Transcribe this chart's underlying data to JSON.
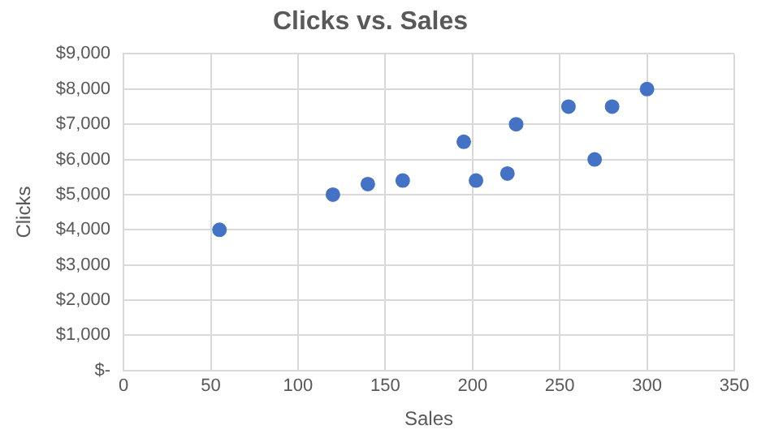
{
  "chart_data": {
    "type": "scatter",
    "title": "Clicks vs. Sales",
    "xlabel": "Sales",
    "ylabel": "Clicks",
    "x": [
      55,
      120,
      140,
      160,
      195,
      202,
      220,
      225,
      255,
      270,
      280,
      300
    ],
    "values": [
      4000,
      5000,
      5300,
      5400,
      6500,
      5400,
      5600,
      7000,
      7500,
      6000,
      7500,
      8000
    ],
    "color": "#4472c4",
    "marker": "circle",
    "grid": true,
    "legend": false,
    "xlim": [
      0,
      350
    ],
    "xticks": [
      0,
      50,
      100,
      150,
      200,
      250,
      300,
      350
    ],
    "ylim": [
      0,
      9000
    ],
    "yticks": [
      {
        "value": 0,
        "label": "$-"
      },
      {
        "value": 1000,
        "label": "$1,000"
      },
      {
        "value": 2000,
        "label": "$2,000"
      },
      {
        "value": 3000,
        "label": "$3,000"
      },
      {
        "value": 4000,
        "label": "$4,000"
      },
      {
        "value": 5000,
        "label": "$5,000"
      },
      {
        "value": 6000,
        "label": "$6,000"
      },
      {
        "value": 7000,
        "label": "$7,000"
      },
      {
        "value": 8000,
        "label": "$8,000"
      },
      {
        "value": 9000,
        "label": "$9,000"
      }
    ]
  }
}
